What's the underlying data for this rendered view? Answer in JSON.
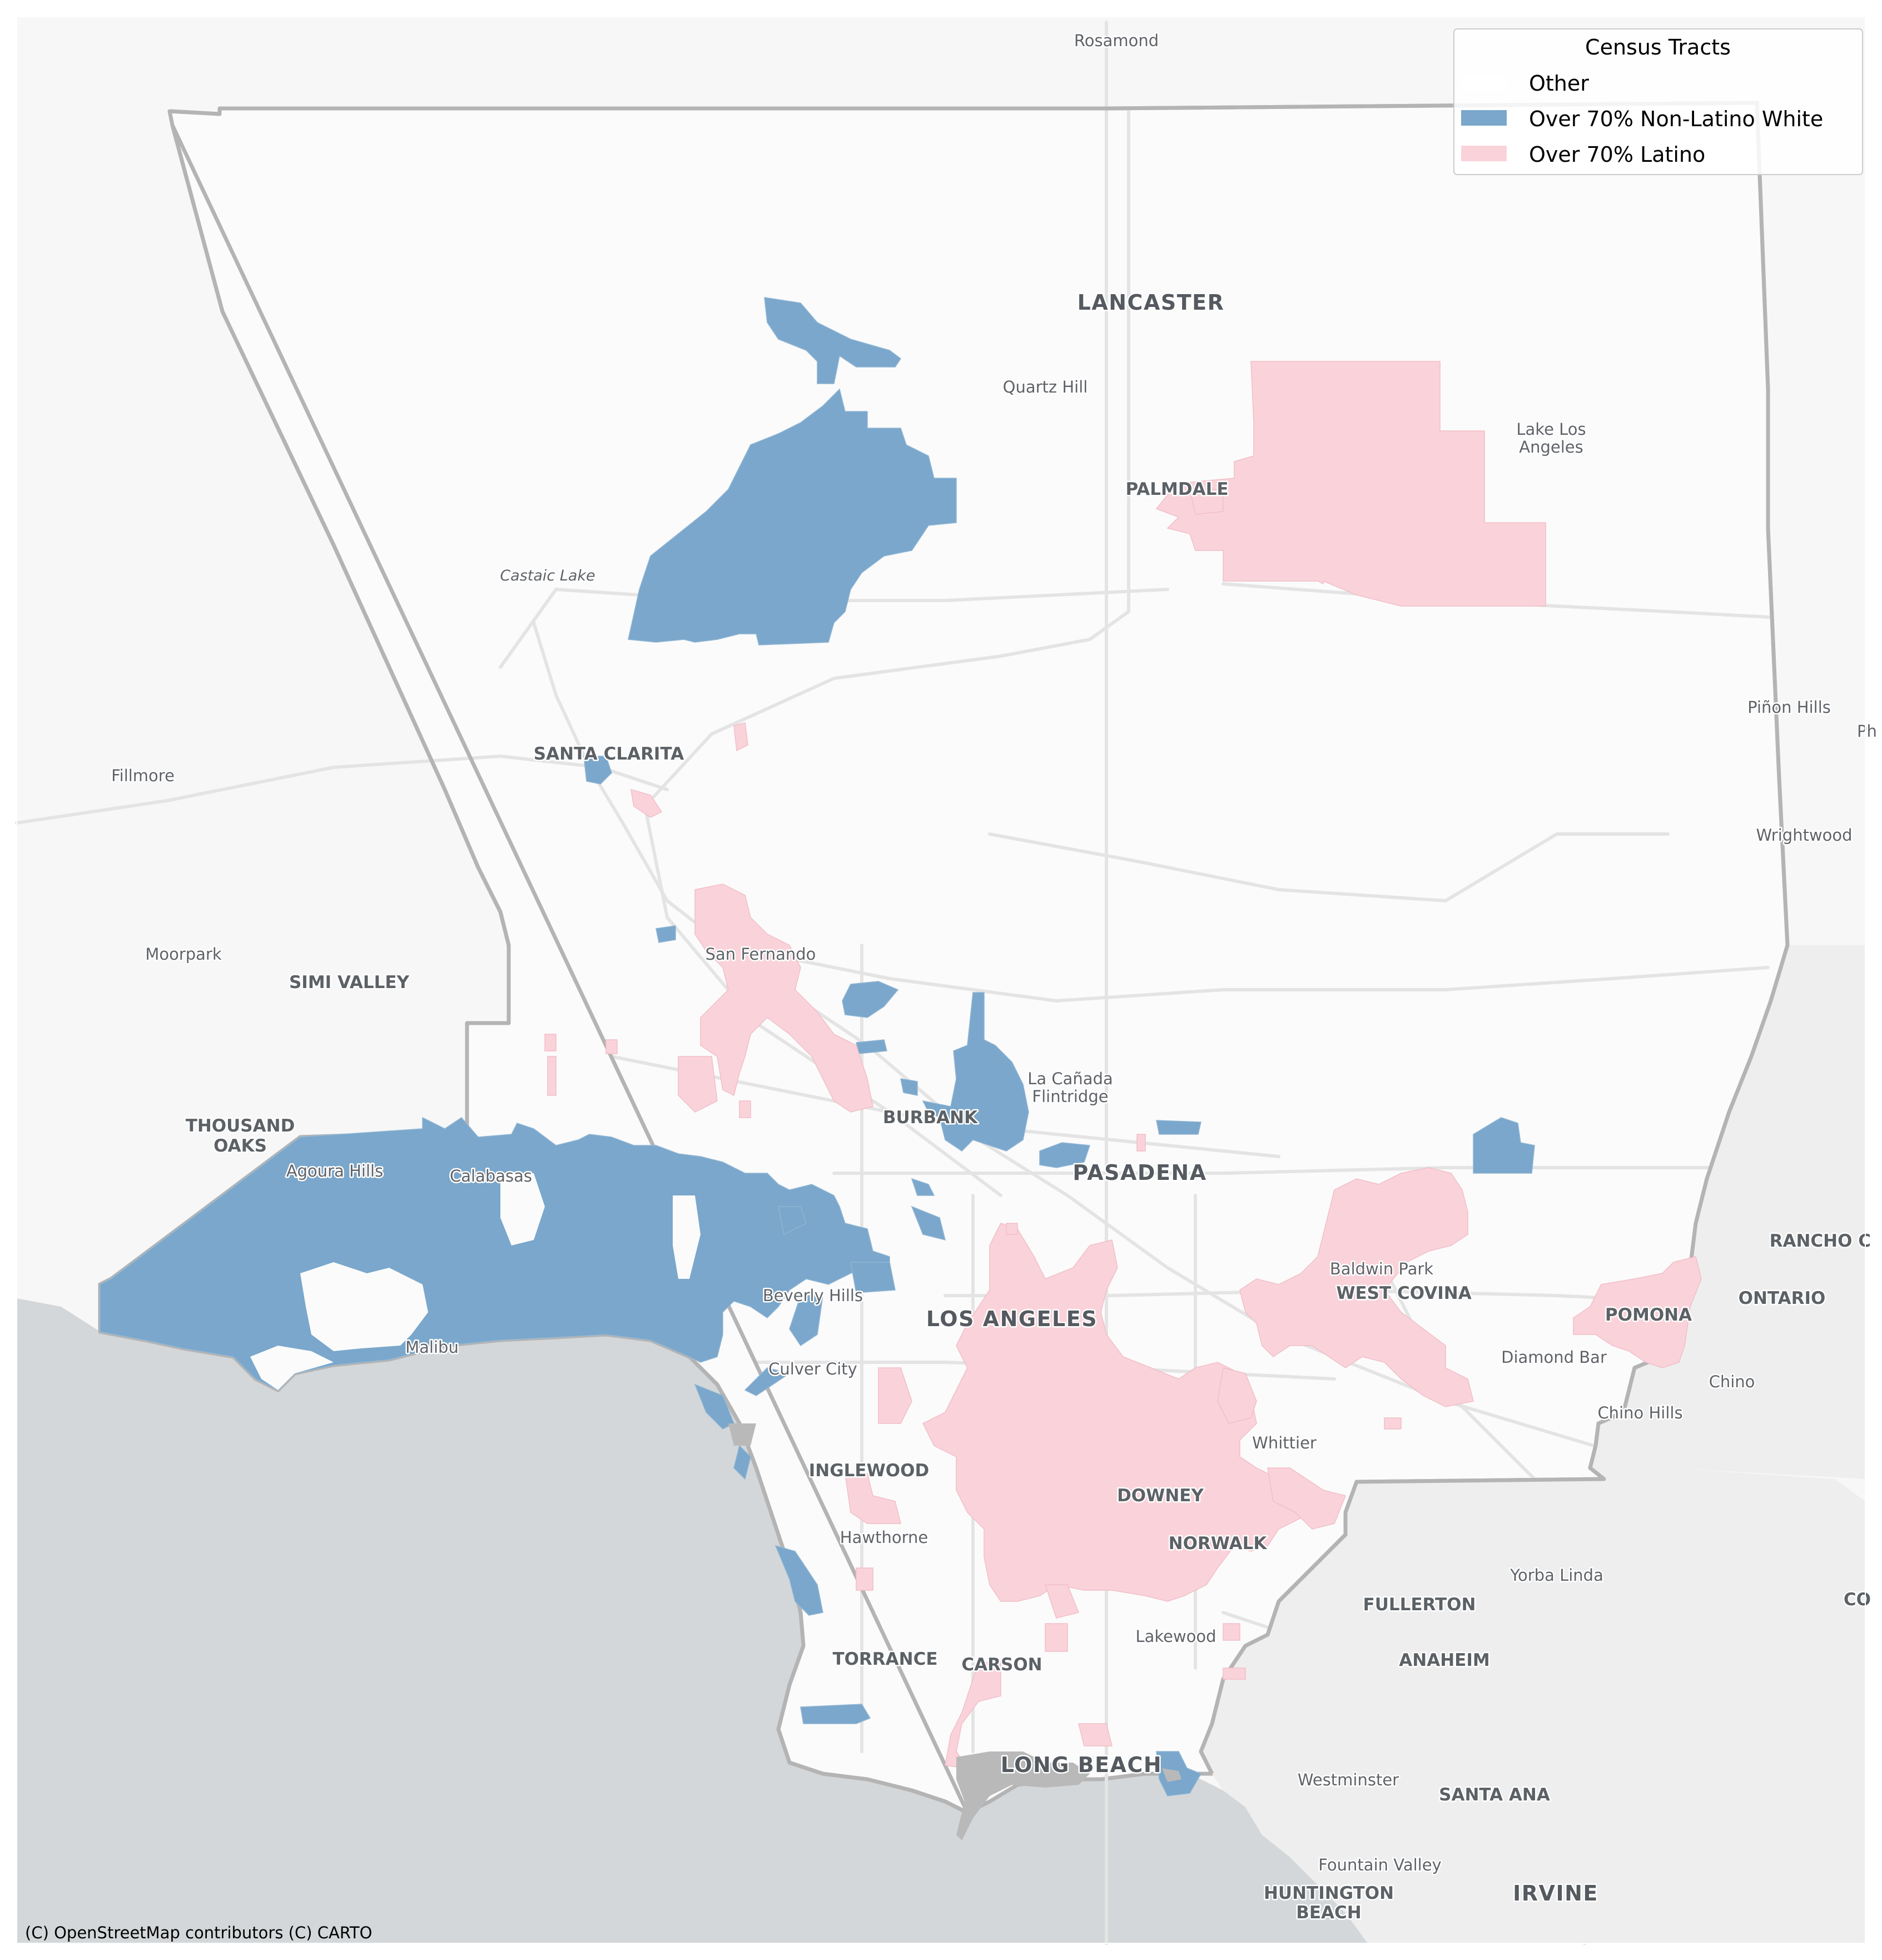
{
  "legend": {
    "title": "Census Tracts",
    "items": [
      {
        "label": "Other",
        "color": "#ffffff"
      },
      {
        "label": "Over 70% Non-Latino White",
        "color": "#7aa7cb"
      },
      {
        "label": "Over 70% Latino",
        "color": "#fad3da"
      }
    ]
  },
  "attribution": "(C) OpenStreetMap contributors (C) CARTO",
  "colors": {
    "ocean": "#d4d7d9",
    "land": "#f7f7f7",
    "county": "#fbfbfb",
    "border": "#b4b4b4",
    "white_tracts": "#7aa7cb",
    "latino_tracts": "#fad3da",
    "roads": "#e6e6e6"
  },
  "places": {
    "rosamond": "Rosamond",
    "lancaster": "LANCASTER",
    "quartz_hill": "Quartz Hill",
    "lake_los_angeles_1": "Lake Los",
    "lake_los_angeles_2": "Angeles",
    "palmdale": "PALMDALE",
    "castaic_lake": "Castaic Lake",
    "pinon_hills": "Piñon Hills",
    "ph": "Ph",
    "santa_clarita": "SANTA CLARITA",
    "fillmore": "Fillmore",
    "wrightwood": "Wrightwood",
    "moorpark": "Moorpark",
    "san_fernando": "San Fernando",
    "simi_valley": "SIMI VALLEY",
    "la_canada_1": "La Cañada",
    "la_canada_2": "Flintridge",
    "burbank": "BURBANK",
    "thousand_oaks_1": "THOUSAND",
    "thousand_oaks_2": "OAKS",
    "agoura_hills": "Agoura Hills",
    "calabasas": "Calabasas",
    "pasadena": "PASADENA",
    "rancho": "RANCHO C",
    "baldwin_park": "Baldwin Park",
    "west_covina": "WEST COVINA",
    "ontario": "ONTARIO",
    "beverly_hills": "Beverly Hills",
    "los_angeles": "LOS ANGELES",
    "pomona": "POMONA",
    "malibu": "Malibu",
    "culver_city": "Culver City",
    "diamond_bar": "Diamond Bar",
    "chino": "Chino",
    "chino_hills": "Chino Hills",
    "whittier": "Whittier",
    "inglewood": "INGLEWOOD",
    "downey": "DOWNEY",
    "hawthorne": "Hawthorne",
    "norwalk": "NORWALK",
    "yorba_linda": "Yorba Linda",
    "fullerton": "FULLERTON",
    "co": "CO",
    "lakewood": "Lakewood",
    "torrance": "TORRANCE",
    "carson": "CARSON",
    "anaheim": "ANAHEIM",
    "long_beach": "LONG BEACH",
    "westminster": "Westminster",
    "santa_ana": "SANTA ANA",
    "fountain_valley": "Fountain Valley",
    "huntington_beach_1": "HUNTINGTON",
    "huntington_beach_2": "BEACH",
    "irvine": "IRVINE"
  }
}
